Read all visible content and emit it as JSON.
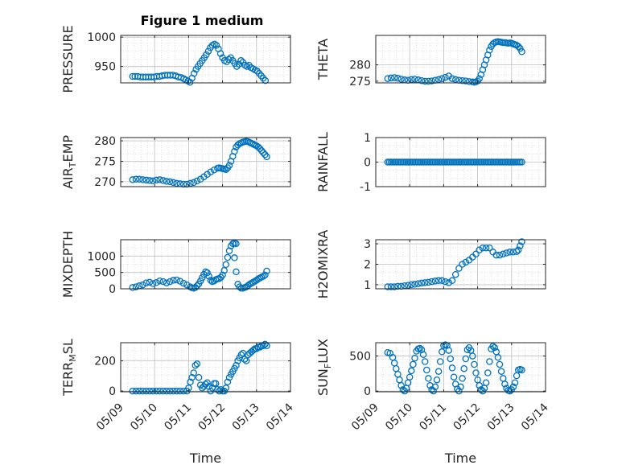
{
  "figure": {
    "title": "Figure 1 medium",
    "marker_color": "#0072BD",
    "time_tick_labels": [
      "05/09",
      "05/10",
      "05/11",
      "05/12",
      "05/13",
      "05/14"
    ]
  },
  "chart_data": [
    {
      "id": "pressure",
      "type": "scatter",
      "title": "Figure 1 medium",
      "ylabel": "PRESSURE",
      "ylabel_main": "PRESSURE",
      "ylabel_sub": "",
      "ylabel_tail": "",
      "xlabel": "",
      "xlim": [
        0,
        5
      ],
      "ylim": [
        922,
        1003
      ],
      "yticks": [
        950,
        1000
      ],
      "ytick_labels": [
        "950",
        "1000"
      ],
      "grid": true,
      "minor_grid": true,
      "x": [
        0.35,
        0.42,
        0.5,
        0.58,
        0.66,
        0.74,
        0.82,
        0.9,
        0.98,
        1.06,
        1.14,
        1.22,
        1.3,
        1.38,
        1.46,
        1.54,
        1.62,
        1.7,
        1.78,
        1.86,
        1.92,
        1.98,
        2.04,
        2.1,
        2.16,
        2.22,
        2.28,
        2.34,
        2.4,
        2.46,
        2.52,
        2.58,
        2.64,
        2.7,
        2.76,
        2.82,
        2.88,
        2.94,
        3.0,
        3.06,
        3.12,
        3.18,
        3.24,
        3.3,
        3.36,
        3.42,
        3.48,
        3.54,
        3.6,
        3.66,
        3.72,
        3.78,
        3.84,
        3.9,
        3.96,
        4.02,
        4.08,
        4.14,
        4.2,
        4.26
      ],
      "y": [
        933,
        933,
        933,
        932,
        932,
        932,
        932,
        932,
        932,
        933,
        933,
        934,
        935,
        935,
        935,
        935,
        934,
        932,
        931,
        929,
        927,
        925,
        923,
        930,
        938,
        945,
        950,
        955,
        960,
        965,
        970,
        976,
        982,
        986,
        988,
        986,
        980,
        972,
        965,
        960,
        958,
        962,
        965,
        960,
        955,
        950,
        954,
        960,
        957,
        952,
        950,
        952,
        948,
        946,
        944,
        942,
        938,
        934,
        930,
        926
      ]
    },
    {
      "id": "theta",
      "type": "scatter",
      "ylabel": "THETA",
      "ylabel_main": "THETA",
      "ylabel_sub": "",
      "ylabel_tail": "",
      "xlabel": "",
      "xlim": [
        0,
        5
      ],
      "ylim": [
        274.5,
        289
      ],
      "yticks": [
        275,
        280
      ],
      "ytick_labels": [
        "275",
        "280"
      ],
      "grid": true,
      "minor_grid": true,
      "x": [
        0.35,
        0.45,
        0.55,
        0.65,
        0.75,
        0.85,
        0.95,
        1.05,
        1.15,
        1.25,
        1.35,
        1.45,
        1.55,
        1.65,
        1.75,
        1.85,
        1.95,
        2.05,
        2.15,
        2.25,
        2.35,
        2.45,
        2.55,
        2.65,
        2.75,
        2.85,
        2.9,
        2.95,
        3.0,
        3.05,
        3.1,
        3.15,
        3.2,
        3.25,
        3.3,
        3.35,
        3.4,
        3.45,
        3.5,
        3.55,
        3.6,
        3.65,
        3.7,
        3.75,
        3.8,
        3.85,
        3.9,
        3.95,
        4.0,
        4.05,
        4.1,
        4.15,
        4.2,
        4.25,
        4.3
      ],
      "y": [
        275.8,
        276,
        276.1,
        275.9,
        275.6,
        275.4,
        275.3,
        275.5,
        275.6,
        275.4,
        275.2,
        275,
        275,
        275.1,
        275.3,
        275.5,
        275.8,
        276.2,
        276.6,
        275.8,
        275.5,
        275.3,
        275.2,
        275.1,
        274.9,
        274.8,
        274.7,
        274.8,
        275.1,
        275.8,
        277,
        278.5,
        280,
        281.5,
        283,
        284.5,
        285.6,
        286.4,
        286.8,
        287,
        287.1,
        287,
        286.9,
        286.8,
        286.8,
        286.7,
        286.6,
        286.7,
        286.6,
        286.4,
        286.2,
        286,
        285.6,
        285,
        284
      ]
    },
    {
      "id": "air_temp",
      "type": "scatter",
      "ylabel": "AIR_TEMP",
      "ylabel_main": "AIR",
      "ylabel_sub": "T",
      "ylabel_tail": "EMP",
      "xlabel": "",
      "xlim": [
        0,
        5
      ],
      "ylim": [
        268.8,
        280.8
      ],
      "yticks": [
        270,
        275,
        280
      ],
      "ytick_labels": [
        "270",
        "275",
        "280"
      ],
      "grid": true,
      "minor_grid": true,
      "x": [
        0.35,
        0.45,
        0.55,
        0.65,
        0.75,
        0.85,
        0.95,
        1.05,
        1.15,
        1.25,
        1.35,
        1.45,
        1.55,
        1.65,
        1.75,
        1.85,
        1.95,
        2.05,
        2.15,
        2.25,
        2.35,
        2.45,
        2.55,
        2.65,
        2.75,
        2.85,
        2.9,
        2.95,
        3.0,
        3.05,
        3.1,
        3.15,
        3.2,
        3.25,
        3.3,
        3.35,
        3.4,
        3.45,
        3.5,
        3.55,
        3.6,
        3.65,
        3.7,
        3.75,
        3.8,
        3.85,
        3.9,
        3.95,
        4.0,
        4.05,
        4.1,
        4.15,
        4.2,
        4.25,
        4.3
      ],
      "y": [
        270.5,
        270.6,
        270.6,
        270.5,
        270.4,
        270.3,
        270.2,
        270.4,
        270.5,
        270.3,
        270.1,
        270,
        269.8,
        269.6,
        269.5,
        269.4,
        269.4,
        269.6,
        269.8,
        270.2,
        270.6,
        271.2,
        271.8,
        272.4,
        272.9,
        273.3,
        273.4,
        273.3,
        273.2,
        273.1,
        273,
        273.4,
        274,
        275,
        276.2,
        277.4,
        278.5,
        279,
        279.3,
        279.5,
        279.7,
        279.8,
        279.9,
        279.8,
        279.6,
        279.4,
        279.2,
        279,
        278.8,
        278.5,
        278.1,
        277.6,
        277.1,
        276.6,
        276.1
      ]
    },
    {
      "id": "rainfall",
      "type": "scatter",
      "ylabel": "RAINFALL",
      "ylabel_main": "RAINFALL",
      "ylabel_sub": "",
      "ylabel_tail": "",
      "xlabel": "",
      "xlim": [
        0,
        5
      ],
      "ylim": [
        -1,
        1
      ],
      "yticks": [
        -1,
        0,
        1
      ],
      "ytick_labels": [
        "-1",
        "0",
        "1"
      ],
      "grid": true,
      "minor_grid": true,
      "x": [
        0.35,
        0.4,
        0.45,
        0.5,
        0.55,
        0.6,
        0.65,
        0.7,
        0.75,
        0.8,
        0.85,
        0.9,
        0.95,
        1.0,
        1.05,
        1.1,
        1.15,
        1.2,
        1.25,
        1.3,
        1.35,
        1.4,
        1.45,
        1.5,
        1.55,
        1.6,
        1.65,
        1.7,
        1.75,
        1.8,
        1.85,
        1.9,
        1.95,
        2.0,
        2.05,
        2.1,
        2.15,
        2.2,
        2.25,
        2.3,
        2.35,
        2.4,
        2.45,
        2.5,
        2.55,
        2.6,
        2.65,
        2.7,
        2.75,
        2.8,
        2.85,
        2.9,
        2.95,
        3.0,
        3.05,
        3.1,
        3.15,
        3.2,
        3.25,
        3.3,
        3.35,
        3.4,
        3.45,
        3.5,
        3.55,
        3.6,
        3.65,
        3.7,
        3.75,
        3.8,
        3.85,
        3.9,
        3.95,
        4.0,
        4.05,
        4.1,
        4.15,
        4.2,
        4.25,
        4.3
      ],
      "y": [
        0,
        0,
        0,
        0,
        0,
        0,
        0,
        0,
        0,
        0,
        0,
        0,
        0,
        0,
        0,
        0,
        0,
        0,
        0,
        0,
        0,
        0,
        0,
        0,
        0,
        0,
        0,
        0,
        0,
        0,
        0,
        0,
        0,
        0,
        0,
        0,
        0,
        0,
        0,
        0,
        0,
        0,
        0,
        0,
        0,
        0,
        0,
        0,
        0,
        0,
        0,
        0,
        0,
        0,
        0,
        0,
        0,
        0,
        0,
        0,
        0,
        0,
        0,
        0,
        0,
        0,
        0,
        0,
        0,
        0,
        0,
        0,
        0,
        0,
        0,
        0,
        0,
        0,
        0,
        0
      ]
    },
    {
      "id": "mixdepth",
      "type": "scatter",
      "ylabel": "MIXDEPTH",
      "ylabel_main": "MIXDEPTH",
      "ylabel_sub": "",
      "ylabel_tail": "",
      "xlabel": "",
      "xlim": [
        0,
        5
      ],
      "ylim": [
        0,
        1500
      ],
      "yticks": [
        0,
        500,
        1000
      ],
      "ytick_labels": [
        "0",
        "500",
        "1000"
      ],
      "grid": true,
      "minor_grid": true,
      "x": [
        0.35,
        0.45,
        0.55,
        0.65,
        0.75,
        0.85,
        0.95,
        1.05,
        1.15,
        1.25,
        1.35,
        1.45,
        1.55,
        1.65,
        1.75,
        1.85,
        1.95,
        2.05,
        2.1,
        2.15,
        2.2,
        2.25,
        2.3,
        2.35,
        2.4,
        2.45,
        2.5,
        2.55,
        2.6,
        2.65,
        2.7,
        2.75,
        2.8,
        2.85,
        2.9,
        2.95,
        3.0,
        3.05,
        3.1,
        3.15,
        3.2,
        3.25,
        3.3,
        3.35,
        3.4,
        3.45,
        3.5,
        3.55,
        3.6,
        3.65,
        3.7,
        3.75,
        3.8,
        3.85,
        3.9,
        3.95,
        4.0,
        4.05,
        4.1,
        4.15,
        4.2,
        4.25,
        4.3,
        3.35,
        3.4
      ],
      "y": [
        40,
        60,
        90,
        120,
        180,
        200,
        160,
        190,
        240,
        220,
        180,
        220,
        260,
        270,
        230,
        170,
        120,
        60,
        30,
        20,
        40,
        90,
        150,
        240,
        340,
        440,
        520,
        490,
        380,
        260,
        220,
        240,
        280,
        300,
        310,
        350,
        420,
        560,
        740,
        960,
        1160,
        1310,
        1380,
        1390,
        1380,
        140,
        60,
        20,
        20,
        40,
        60,
        100,
        140,
        170,
        200,
        230,
        260,
        300,
        330,
        360,
        380,
        420,
        540,
        950,
        520
      ]
    },
    {
      "id": "h2omixra",
      "type": "scatter",
      "ylabel": "H2OMIXRA",
      "ylabel_main": "H2OMIXRA",
      "ylabel_sub": "",
      "ylabel_tail": "",
      "xlabel": "",
      "xlim": [
        0,
        5
      ],
      "ylim": [
        0.8,
        3.2
      ],
      "yticks": [
        1,
        2,
        3
      ],
      "ytick_labels": [
        "1",
        "2",
        "3"
      ],
      "grid": true,
      "minor_grid": true,
      "x": [
        0.35,
        0.45,
        0.55,
        0.65,
        0.75,
        0.85,
        0.95,
        1.05,
        1.15,
        1.25,
        1.35,
        1.45,
        1.55,
        1.65,
        1.75,
        1.85,
        1.95,
        2.05,
        2.15,
        2.25,
        2.35,
        2.45,
        2.55,
        2.65,
        2.75,
        2.85,
        2.95,
        3.05,
        3.15,
        3.25,
        3.35,
        3.45,
        3.55,
        3.65,
        3.75,
        3.85,
        3.95,
        4.05,
        4.15,
        4.2,
        4.25,
        4.3
      ],
      "y": [
        0.9,
        0.9,
        0.9,
        0.92,
        0.92,
        0.95,
        0.97,
        1.0,
        1.02,
        1.05,
        1.08,
        1.1,
        1.12,
        1.15,
        1.18,
        1.2,
        1.2,
        1.15,
        1.1,
        1.2,
        1.5,
        1.8,
        2.0,
        2.1,
        2.2,
        2.35,
        2.5,
        2.7,
        2.8,
        2.8,
        2.8,
        2.6,
        2.45,
        2.45,
        2.5,
        2.55,
        2.6,
        2.6,
        2.62,
        2.7,
        2.9,
        3.1
      ]
    },
    {
      "id": "terr_msl",
      "type": "scatter",
      "ylabel": "TERR_MSL",
      "ylabel_main": "TERR",
      "ylabel_sub": "M",
      "ylabel_tail": "SL",
      "xlabel": "Time",
      "xlim": [
        0,
        5
      ],
      "ylim": [
        -5,
        320
      ],
      "yticks": [
        0,
        200
      ],
      "ytick_labels": [
        "0",
        "200"
      ],
      "xtick_labels": [
        "05/09",
        "05/10",
        "05/11",
        "05/12",
        "05/13",
        "05/14"
      ],
      "grid": true,
      "minor_grid": true,
      "x": [
        0.35,
        0.45,
        0.55,
        0.65,
        0.75,
        0.85,
        0.95,
        1.05,
        1.15,
        1.25,
        1.35,
        1.45,
        1.55,
        1.65,
        1.75,
        1.85,
        1.95,
        2.0,
        2.05,
        2.1,
        2.15,
        2.2,
        2.25,
        2.3,
        2.35,
        2.4,
        2.45,
        2.5,
        2.55,
        2.6,
        2.65,
        2.7,
        2.75,
        2.8,
        2.85,
        2.9,
        2.95,
        3.0,
        3.05,
        3.1,
        3.15,
        3.2,
        3.25,
        3.3,
        3.35,
        3.4,
        3.45,
        3.5,
        3.55,
        3.6,
        3.65,
        3.7,
        3.75,
        3.8,
        3.85,
        3.9,
        3.95,
        4.0,
        4.05,
        4.1,
        4.15,
        4.2,
        4.25,
        4.3
      ],
      "y": [
        0,
        0,
        0,
        0,
        0,
        0,
        0,
        0,
        0,
        0,
        0,
        0,
        0,
        0,
        0,
        0,
        0,
        20,
        60,
        90,
        120,
        170,
        180,
        90,
        40,
        20,
        30,
        45,
        55,
        30,
        0,
        20,
        50,
        50,
        10,
        0,
        10,
        0,
        0,
        20,
        60,
        90,
        110,
        130,
        150,
        170,
        200,
        220,
        240,
        250,
        210,
        200,
        240,
        250,
        260,
        270,
        280,
        280,
        290,
        290,
        300,
        300,
        310,
        300
      ]
    },
    {
      "id": "sun_flux",
      "type": "scatter",
      "ylabel": "SUN_FLUX",
      "ylabel_main": "SUN",
      "ylabel_sub": "F",
      "ylabel_tail": "LUX",
      "xlabel": "Time",
      "xlim": [
        0,
        5
      ],
      "ylim": [
        -10,
        690
      ],
      "yticks": [
        0,
        500
      ],
      "ytick_labels": [
        "0",
        "500"
      ],
      "xtick_labels": [
        "05/09",
        "05/10",
        "05/11",
        "05/12",
        "05/13",
        "05/14"
      ],
      "grid": true,
      "minor_grid": true,
      "x": [
        0.35,
        0.42,
        0.5,
        0.55,
        0.6,
        0.65,
        0.7,
        0.75,
        0.8,
        0.85,
        0.9,
        0.95,
        1.0,
        1.05,
        1.1,
        1.15,
        1.2,
        1.25,
        1.3,
        1.35,
        1.4,
        1.45,
        1.5,
        1.55,
        1.6,
        1.65,
        1.7,
        1.75,
        1.8,
        1.85,
        1.9,
        1.95,
        2.0,
        2.05,
        2.1,
        2.15,
        2.2,
        2.25,
        2.3,
        2.35,
        2.4,
        2.45,
        2.5,
        2.55,
        2.6,
        2.65,
        2.7,
        2.75,
        2.8,
        2.85,
        2.9,
        2.95,
        3.0,
        3.05,
        3.1,
        3.15,
        3.2,
        3.25,
        3.3,
        3.35,
        3.4,
        3.45,
        3.5,
        3.55,
        3.6,
        3.65,
        3.7,
        3.75,
        3.8,
        3.85,
        3.9,
        3.95,
        4.0,
        4.05,
        4.1,
        4.15,
        4.2,
        4.25,
        4.3
      ],
      "y": [
        550,
        540,
        480,
        400,
        320,
        240,
        160,
        80,
        20,
        0,
        40,
        120,
        200,
        290,
        380,
        470,
        570,
        600,
        610,
        590,
        520,
        420,
        300,
        180,
        80,
        20,
        0,
        60,
        160,
        280,
        420,
        560,
        650,
        660,
        650,
        580,
        460,
        330,
        200,
        100,
        30,
        0,
        60,
        180,
        320,
        460,
        590,
        620,
        580,
        500,
        380,
        260,
        160,
        80,
        20,
        0,
        40,
        120,
        260,
        420,
        600,
        640,
        620,
        560,
        480,
        380,
        280,
        180,
        100,
        40,
        10,
        0,
        20,
        60,
        120,
        220,
        300,
        310,
        300
      ]
    }
  ]
}
